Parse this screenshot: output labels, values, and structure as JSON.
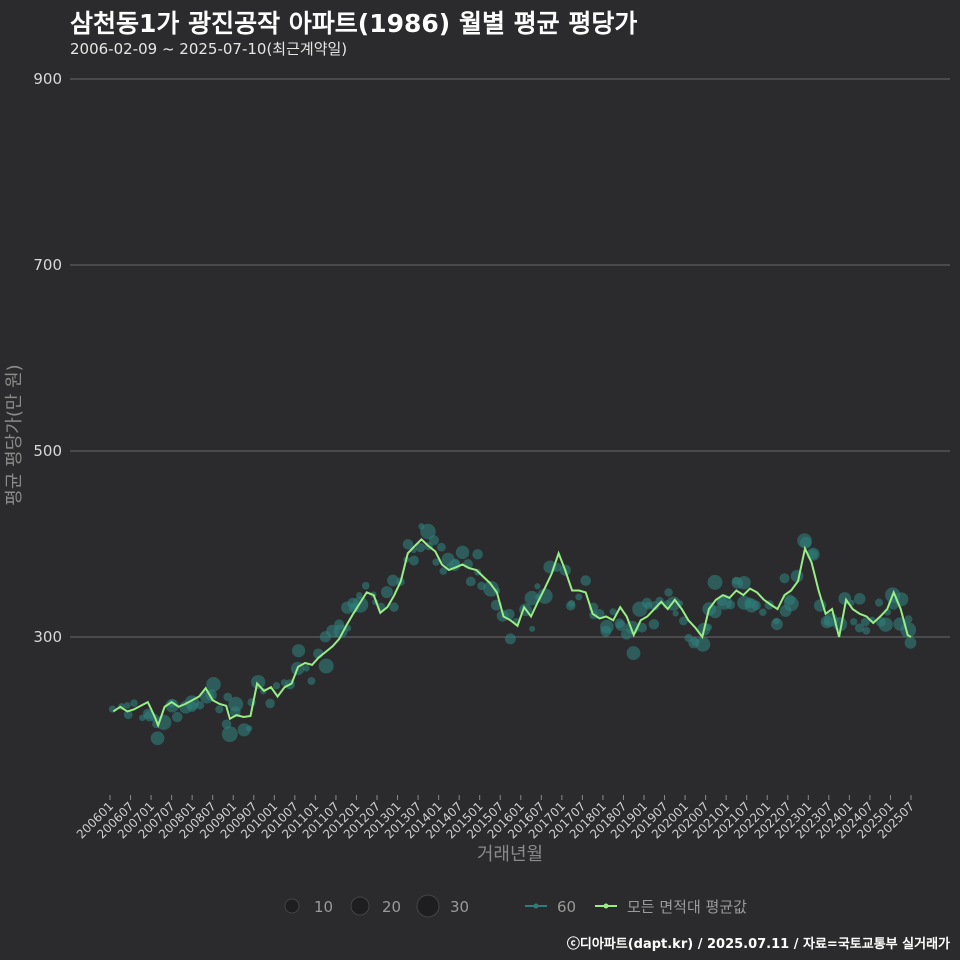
{
  "title": "삼천동1가 광진공작 아파트(1986) 월별 평균 평당가",
  "subtitle": "2006-02-09 ~ 2025-07-10(최근계약일)",
  "caption": "ⓒ디아파트(dapt.kr) / 2025.07.11 / 자료=국토교통부 실거래가",
  "colors": {
    "background": "#2b2b2d",
    "grid": "#6a6a6a",
    "bubble": "#2e7d7a",
    "line": "#98ee85"
  },
  "chart_data": {
    "type": "line",
    "title": "삼천동1가 광진공작 아파트(1986) 월별 평균 평당가",
    "xlabel": "거래년월",
    "ylabel": "평균 평당가(만 원)",
    "ylim": [
      140,
      920
    ],
    "yticks": [
      300,
      500,
      700,
      900
    ],
    "x_range": [
      2006.0,
      2025.5
    ],
    "xticks": [
      "200601",
      "200607",
      "200701",
      "200707",
      "200801",
      "200807",
      "200901",
      "200907",
      "201001",
      "201007",
      "201101",
      "201107",
      "201201",
      "201207",
      "201301",
      "201307",
      "201401",
      "201407",
      "201501",
      "201507",
      "201601",
      "201607",
      "201701",
      "201707",
      "201801",
      "201807",
      "201901",
      "201907",
      "202001",
      "202007",
      "202101",
      "202107",
      "202201",
      "202207",
      "202301",
      "202307",
      "202401",
      "202407",
      "202501",
      "202507"
    ],
    "legend": {
      "size_title": "",
      "sizes": [
        {
          "label": "10",
          "count": 10
        },
        {
          "label": "20",
          "count": 20
        },
        {
          "label": "30",
          "count": 30
        }
      ],
      "series": [
        {
          "label": "60",
          "kind": "bubble-line"
        },
        {
          "label": "모든 면적대 평균값",
          "kind": "line"
        }
      ]
    },
    "series": [
      {
        "name": "모든 면적대 평균값",
        "points": [
          [
            2006.08,
            220
          ],
          [
            2006.25,
            225
          ],
          [
            2006.42,
            220
          ],
          [
            2006.58,
            222
          ],
          [
            2006.75,
            226
          ],
          [
            2006.92,
            230
          ],
          [
            2007.08,
            215
          ],
          [
            2007.17,
            205
          ],
          [
            2007.33,
            225
          ],
          [
            2007.5,
            230
          ],
          [
            2007.67,
            225
          ],
          [
            2007.83,
            228
          ],
          [
            2008.0,
            232
          ],
          [
            2008.17,
            236
          ],
          [
            2008.33,
            245
          ],
          [
            2008.5,
            232
          ],
          [
            2008.67,
            228
          ],
          [
            2008.83,
            226
          ],
          [
            2008.92,
            212
          ],
          [
            2009.08,
            216
          ],
          [
            2009.25,
            214
          ],
          [
            2009.42,
            215
          ],
          [
            2009.58,
            250
          ],
          [
            2009.75,
            242
          ],
          [
            2009.92,
            246
          ],
          [
            2010.08,
            236
          ],
          [
            2010.25,
            246
          ],
          [
            2010.42,
            250
          ],
          [
            2010.58,
            268
          ],
          [
            2010.75,
            272
          ],
          [
            2010.92,
            270
          ],
          [
            2011.08,
            278
          ],
          [
            2011.25,
            284
          ],
          [
            2011.42,
            290
          ],
          [
            2011.58,
            298
          ],
          [
            2011.75,
            312
          ],
          [
            2011.92,
            325
          ],
          [
            2012.08,
            336
          ],
          [
            2012.25,
            348
          ],
          [
            2012.42,
            345
          ],
          [
            2012.58,
            326
          ],
          [
            2012.75,
            332
          ],
          [
            2012.92,
            345
          ],
          [
            2013.08,
            360
          ],
          [
            2013.25,
            390
          ],
          [
            2013.42,
            398
          ],
          [
            2013.58,
            405
          ],
          [
            2013.75,
            398
          ],
          [
            2013.92,
            392
          ],
          [
            2014.08,
            378
          ],
          [
            2014.25,
            372
          ],
          [
            2014.42,
            375
          ],
          [
            2014.58,
            378
          ],
          [
            2014.75,
            374
          ],
          [
            2014.92,
            372
          ],
          [
            2015.08,
            365
          ],
          [
            2015.25,
            358
          ],
          [
            2015.42,
            348
          ],
          [
            2015.58,
            322
          ],
          [
            2015.75,
            318
          ],
          [
            2015.92,
            312
          ],
          [
            2016.08,
            332
          ],
          [
            2016.25,
            322
          ],
          [
            2016.42,
            338
          ],
          [
            2016.58,
            352
          ],
          [
            2016.75,
            368
          ],
          [
            2016.92,
            390
          ],
          [
            2017.08,
            372
          ],
          [
            2017.25,
            350
          ],
          [
            2017.42,
            350
          ],
          [
            2017.58,
            348
          ],
          [
            2017.75,
            325
          ],
          [
            2017.92,
            320
          ],
          [
            2018.08,
            322
          ],
          [
            2018.25,
            318
          ],
          [
            2018.42,
            332
          ],
          [
            2018.58,
            322
          ],
          [
            2018.75,
            302
          ],
          [
            2018.92,
            318
          ],
          [
            2019.08,
            322
          ],
          [
            2019.25,
            330
          ],
          [
            2019.42,
            338
          ],
          [
            2019.58,
            330
          ],
          [
            2019.75,
            340
          ],
          [
            2019.92,
            330
          ],
          [
            2020.08,
            318
          ],
          [
            2020.25,
            310
          ],
          [
            2020.42,
            300
          ],
          [
            2020.58,
            330
          ],
          [
            2020.75,
            340
          ],
          [
            2020.92,
            345
          ],
          [
            2021.08,
            342
          ],
          [
            2021.25,
            350
          ],
          [
            2021.42,
            345
          ],
          [
            2021.58,
            352
          ],
          [
            2021.75,
            348
          ],
          [
            2021.92,
            340
          ],
          [
            2022.08,
            335
          ],
          [
            2022.25,
            330
          ],
          [
            2022.42,
            345
          ],
          [
            2022.58,
            350
          ],
          [
            2022.75,
            360
          ],
          [
            2022.92,
            395
          ],
          [
            2023.08,
            380
          ],
          [
            2023.25,
            350
          ],
          [
            2023.42,
            325
          ],
          [
            2023.58,
            330
          ],
          [
            2023.75,
            300
          ],
          [
            2023.92,
            340
          ],
          [
            2024.08,
            330
          ],
          [
            2024.25,
            325
          ],
          [
            2024.42,
            322
          ],
          [
            2024.58,
            315
          ],
          [
            2024.75,
            322
          ],
          [
            2024.92,
            330
          ],
          [
            2025.08,
            348
          ],
          [
            2025.25,
            330
          ],
          [
            2025.42,
            302
          ],
          [
            2025.5,
            300
          ]
        ]
      }
    ]
  }
}
